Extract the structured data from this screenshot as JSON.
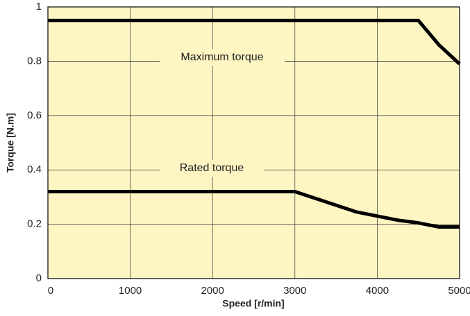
{
  "chart_data": {
    "type": "line",
    "xlabel": "Speed [r/min]",
    "ylabel": "Torque [N.m]",
    "xlim": [
      0,
      5000
    ],
    "xticks": [
      0,
      1000,
      2000,
      3000,
      4000,
      5000
    ],
    "ylim": [
      0,
      1
    ],
    "yticks": [
      0,
      0.2,
      0.4,
      0.6,
      0.8,
      1
    ],
    "grid": true,
    "background": "#fdf6c3",
    "series": [
      {
        "name": "Maximum torque",
        "color": "#000000",
        "x": [
          0,
          4500,
          4750,
          5000
        ],
        "values": [
          0.95,
          0.95,
          0.86,
          0.79
        ]
      },
      {
        "name": "Rated torque",
        "color": "#000000",
        "x": [
          0,
          3000,
          3750,
          4250,
          4500,
          4750,
          5000
        ],
        "values": [
          0.32,
          0.32,
          0.245,
          0.215,
          0.205,
          0.19,
          0.19
        ]
      }
    ]
  }
}
